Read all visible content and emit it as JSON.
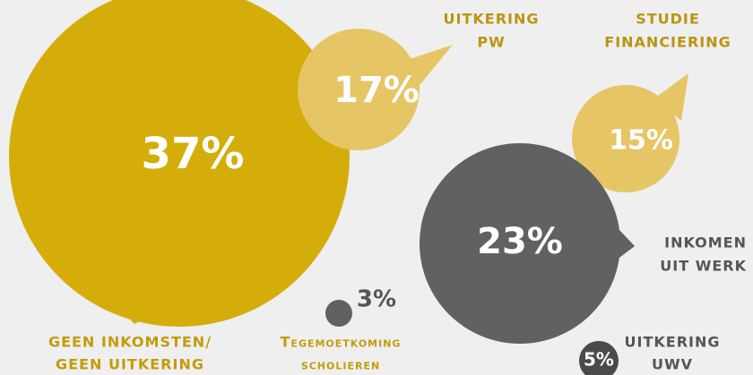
{
  "chart_data": {
    "type": "bubble",
    "categories": [
      [
        "GEEN INKOMSTEN/",
        "GEEN UITKERING"
      ],
      [
        "UITKERING",
        "PW"
      ],
      [
        "STUDIE",
        "FINANCIERING"
      ],
      [
        "INKOMEN",
        "UIT WERK"
      ],
      [
        "Tegemoetkoming",
        "scholieren"
      ],
      [
        "UITKERING",
        "UWV"
      ]
    ],
    "values": [
      37,
      17,
      15,
      23,
      3,
      5
    ],
    "value_labels": [
      "37%",
      "17%",
      "15%",
      "23%",
      "3%",
      "5%"
    ],
    "colors": [
      "#d5ad0a",
      "#e6c565",
      "#e6c565",
      "#616161",
      "#616161",
      "#4a4a4a"
    ]
  }
}
